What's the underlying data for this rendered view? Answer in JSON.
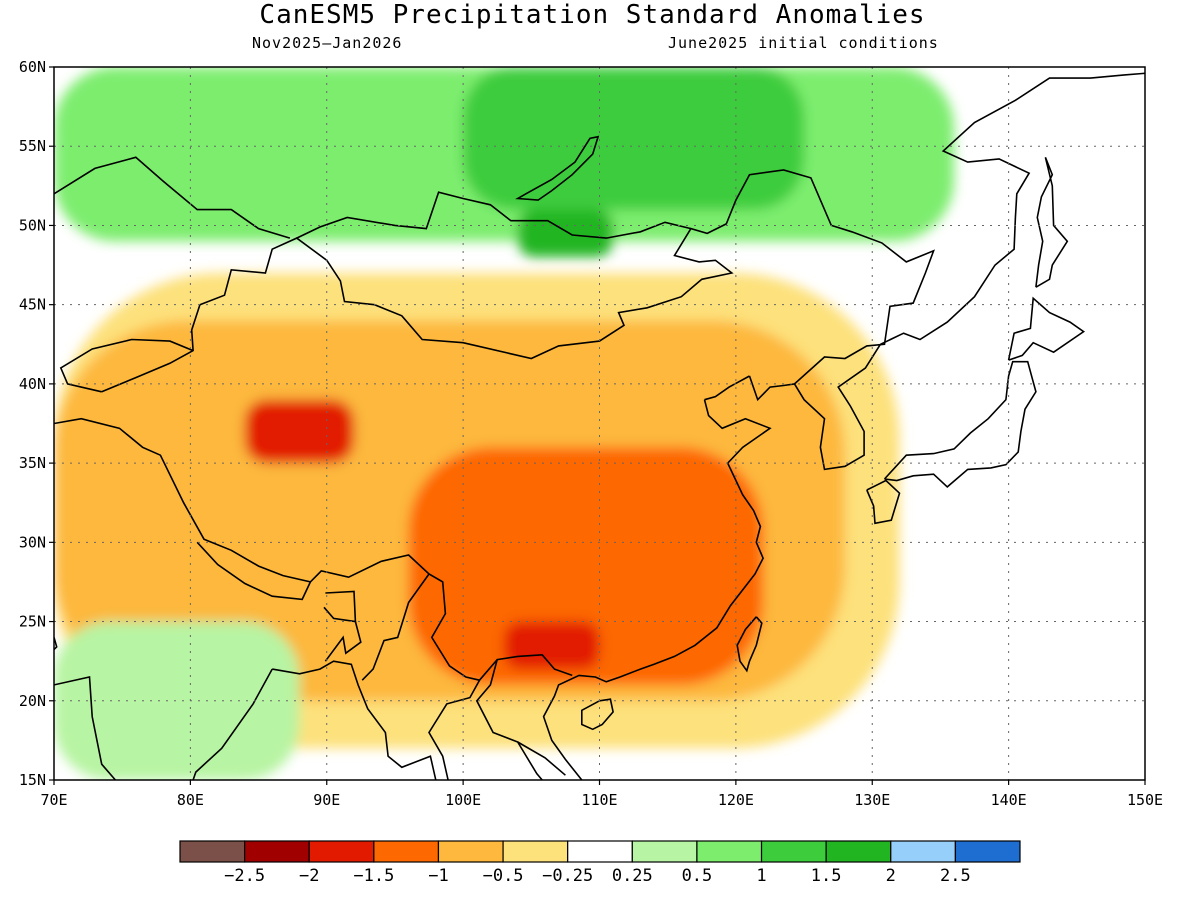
{
  "title": "CanESM5 Precipitation Standard Anomalies",
  "subtitle_left": "Nov2025–Jan2026",
  "subtitle_right": "June2025 initial conditions",
  "map": {
    "lon_range": [
      70,
      150
    ],
    "lat_range": [
      15,
      60
    ],
    "grid": "dotted",
    "lon_ticks": [
      "70E",
      "80E",
      "90E",
      "100E",
      "110E",
      "120E",
      "130E",
      "140E",
      "150E"
    ],
    "lat_ticks": [
      "60N",
      "55N",
      "50N",
      "45N",
      "40N",
      "35N",
      "30N",
      "25N",
      "20N",
      "15N"
    ],
    "regions": [
      {
        "category": "0.5 to 1",
        "color": "#7ded6e",
        "lon": [
          70,
          136
        ],
        "lat": [
          49,
          60
        ]
      },
      {
        "category": "1 to 1.5",
        "color": "#3dcc3c",
        "lon": [
          100,
          125
        ],
        "lat": [
          51,
          60
        ]
      },
      {
        "category": "1.5 to 2",
        "color": "#22b522",
        "lon": [
          104,
          111
        ],
        "lat": [
          48,
          51
        ]
      },
      {
        "category": "-0.5 to -0.25",
        "color": "#fde17b",
        "lon": [
          70,
          132
        ],
        "lat": [
          17,
          47
        ]
      },
      {
        "category": "-1 to -0.5",
        "color": "#fdb83d",
        "lon": [
          70,
          128
        ],
        "lat": [
          20,
          44
        ]
      },
      {
        "category": "-1.5 to -1",
        "color": "#fd6800",
        "lon": [
          96,
          122
        ],
        "lat": [
          21,
          36
        ]
      },
      {
        "category": "-2 to -1.5",
        "color": "#e21b00",
        "lon": [
          84,
          92
        ],
        "lat": [
          35,
          39
        ]
      },
      {
        "category": "-2 to -1.5",
        "color": "#e21b00",
        "lon": [
          103,
          110
        ],
        "lat": [
          22,
          25
        ]
      },
      {
        "category": "0.25 to 0.5",
        "color": "#b7f4a3",
        "lon": [
          70,
          88
        ],
        "lat": [
          15,
          25
        ]
      }
    ]
  },
  "colorbar": {
    "colors": [
      "#7b5048",
      "#a00000",
      "#e21b00",
      "#fd6800",
      "#fdb83d",
      "#fde17b",
      "#ffffff",
      "#b7f4a3",
      "#7ded6e",
      "#3dcc3c",
      "#22b522",
      "#96d0fa",
      "#1e6ed2"
    ],
    "labels": [
      "−2.5",
      "−2",
      "−1.5",
      "−1",
      "−0.5",
      "−0.25",
      "0.25",
      "0.5",
      "1",
      "1.5",
      "2",
      "2.5"
    ]
  }
}
